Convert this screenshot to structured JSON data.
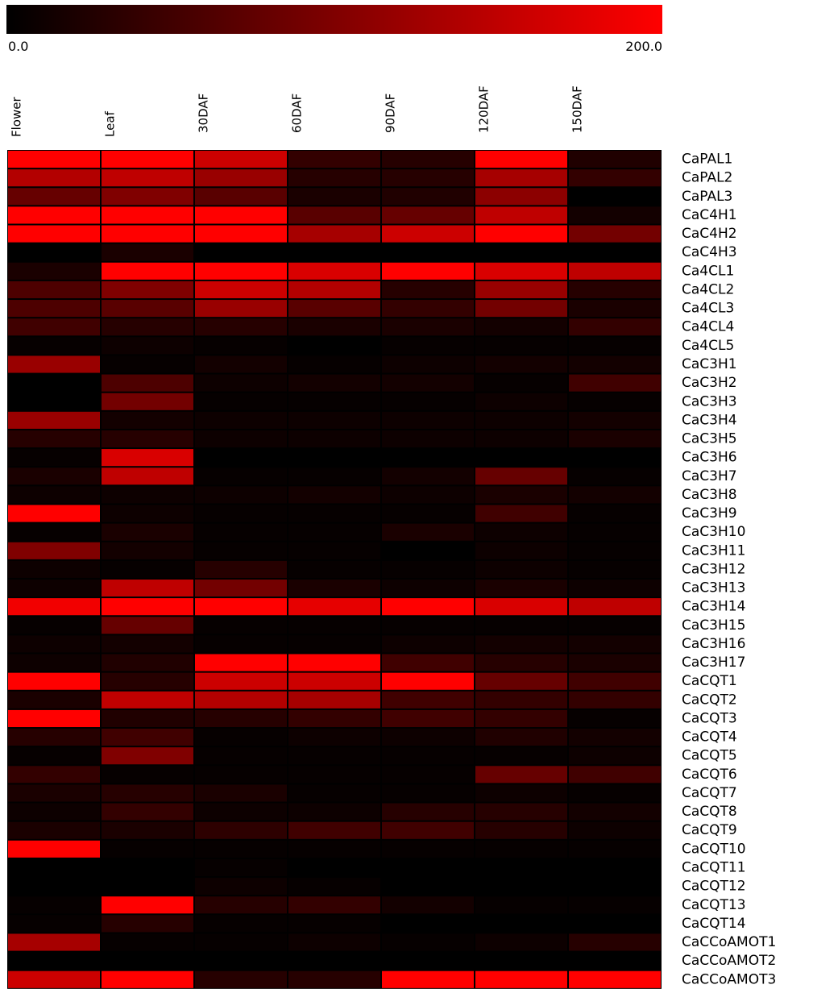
{
  "chart_data": {
    "type": "heatmap",
    "colorbar": {
      "min": 0.0,
      "max": 200.0,
      "min_label": "0.0",
      "max_label": "200.0",
      "low_color": "#000000",
      "high_color": "#ff0000"
    },
    "columns": [
      "Flower",
      "Leaf",
      "30DAF",
      "60DAF",
      "90DAF",
      "120DAF",
      "150DAF"
    ],
    "rows": [
      "CaPAL1",
      "CaPAL2",
      "CaPAL3",
      "CaC4H1",
      "CaC4H2",
      "CaC4H3",
      "Ca4CL1",
      "Ca4CL2",
      "Ca4CL3",
      "Ca4CL4",
      "Ca4CL5",
      "CaC3H1",
      "CaC3H2",
      "CaC3H3",
      "CaC3H4",
      "CaC3H5",
      "CaC3H6",
      "CaC3H7",
      "CaC3H8",
      "CaC3H9",
      "CaC3H10",
      "CaC3H11",
      "CaC3H12",
      "CaC3H13",
      "CaC3H14",
      "CaC3H15",
      "CaC3H16",
      "CaC3H17",
      "CaCQT1",
      "CaCQT2",
      "CaCQT3",
      "CaCQT4",
      "CaCQT5",
      "CaCQT6",
      "CaCQT7",
      "CaCQT8",
      "CaCQT9",
      "CaCQT10",
      "CaCQT11",
      "CaCQT12",
      "CaCQT13",
      "CaCQT14",
      "CaCCoAMOT1",
      "CaCCoAMOT2",
      "CaCCoAMOT3"
    ],
    "values": [
      [
        200,
        200,
        160,
        40,
        30,
        200,
        25
      ],
      [
        140,
        150,
        120,
        30,
        30,
        130,
        40
      ],
      [
        80,
        100,
        70,
        20,
        25,
        110,
        0
      ],
      [
        200,
        200,
        200,
        70,
        80,
        150,
        15
      ],
      [
        200,
        200,
        200,
        130,
        160,
        200,
        90
      ],
      [
        0,
        20,
        0,
        0,
        0,
        0,
        0
      ],
      [
        20,
        200,
        200,
        170,
        200,
        170,
        150
      ],
      [
        60,
        100,
        160,
        140,
        30,
        120,
        30
      ],
      [
        60,
        70,
        120,
        70,
        40,
        90,
        20
      ],
      [
        50,
        30,
        30,
        20,
        20,
        15,
        40
      ],
      [
        5,
        10,
        5,
        0,
        5,
        5,
        5
      ],
      [
        120,
        5,
        15,
        5,
        10,
        15,
        15
      ],
      [
        0,
        60,
        10,
        15,
        15,
        5,
        50
      ],
      [
        0,
        90,
        5,
        5,
        5,
        10,
        5
      ],
      [
        120,
        15,
        10,
        10,
        10,
        10,
        15
      ],
      [
        30,
        30,
        10,
        10,
        10,
        10,
        20
      ],
      [
        5,
        170,
        0,
        0,
        0,
        0,
        0
      ],
      [
        20,
        150,
        5,
        5,
        15,
        80,
        5
      ],
      [
        10,
        10,
        10,
        15,
        10,
        20,
        15
      ],
      [
        200,
        10,
        5,
        5,
        5,
        50,
        5
      ],
      [
        5,
        20,
        5,
        5,
        20,
        10,
        5
      ],
      [
        100,
        15,
        5,
        5,
        0,
        10,
        5
      ],
      [
        10,
        5,
        30,
        5,
        5,
        10,
        5
      ],
      [
        10,
        150,
        90,
        20,
        10,
        20,
        10
      ],
      [
        190,
        200,
        200,
        180,
        200,
        170,
        150
      ],
      [
        5,
        80,
        5,
        5,
        5,
        5,
        5
      ],
      [
        10,
        15,
        5,
        5,
        10,
        15,
        15
      ],
      [
        10,
        25,
        200,
        200,
        50,
        30,
        20
      ],
      [
        200,
        30,
        160,
        160,
        200,
        80,
        50
      ],
      [
        20,
        150,
        140,
        130,
        50,
        40,
        40
      ],
      [
        200,
        25,
        30,
        40,
        50,
        40,
        5
      ],
      [
        30,
        50,
        5,
        10,
        10,
        25,
        15
      ],
      [
        5,
        100,
        5,
        5,
        5,
        5,
        10
      ],
      [
        40,
        5,
        5,
        5,
        5,
        80,
        50
      ],
      [
        20,
        30,
        20,
        5,
        5,
        10,
        5
      ],
      [
        10,
        40,
        10,
        10,
        30,
        30,
        15
      ],
      [
        20,
        20,
        35,
        50,
        50,
        30,
        10
      ],
      [
        200,
        5,
        5,
        5,
        5,
        5,
        5
      ],
      [
        0,
        0,
        5,
        0,
        0,
        0,
        0
      ],
      [
        0,
        0,
        10,
        5,
        0,
        0,
        0
      ],
      [
        5,
        200,
        30,
        40,
        15,
        5,
        5
      ],
      [
        5,
        30,
        5,
        5,
        0,
        0,
        0
      ],
      [
        130,
        5,
        5,
        10,
        5,
        10,
        30
      ],
      [
        0,
        0,
        0,
        0,
        0,
        0,
        0
      ],
      [
        160,
        200,
        30,
        30,
        200,
        200,
        200
      ]
    ]
  }
}
